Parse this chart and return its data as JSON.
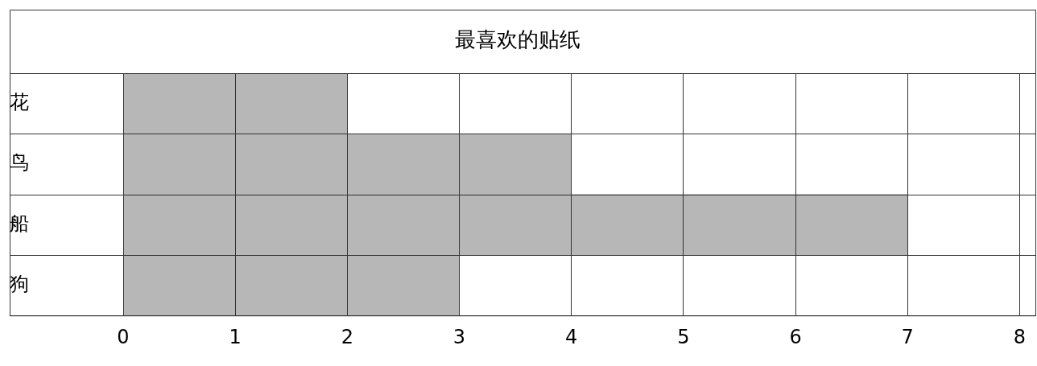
{
  "chart_data": {
    "type": "bar",
    "orientation": "horizontal",
    "title": "最喜欢的贴纸",
    "categories": [
      "花",
      "鸟",
      "船",
      "狗"
    ],
    "values": [
      2,
      4,
      7,
      3
    ],
    "color": "#b7b7b8",
    "xlim": [
      0,
      8
    ],
    "xticks": [
      0,
      1,
      2,
      3,
      4,
      5,
      6,
      7,
      8
    ],
    "grid": "x",
    "legend": false
  }
}
